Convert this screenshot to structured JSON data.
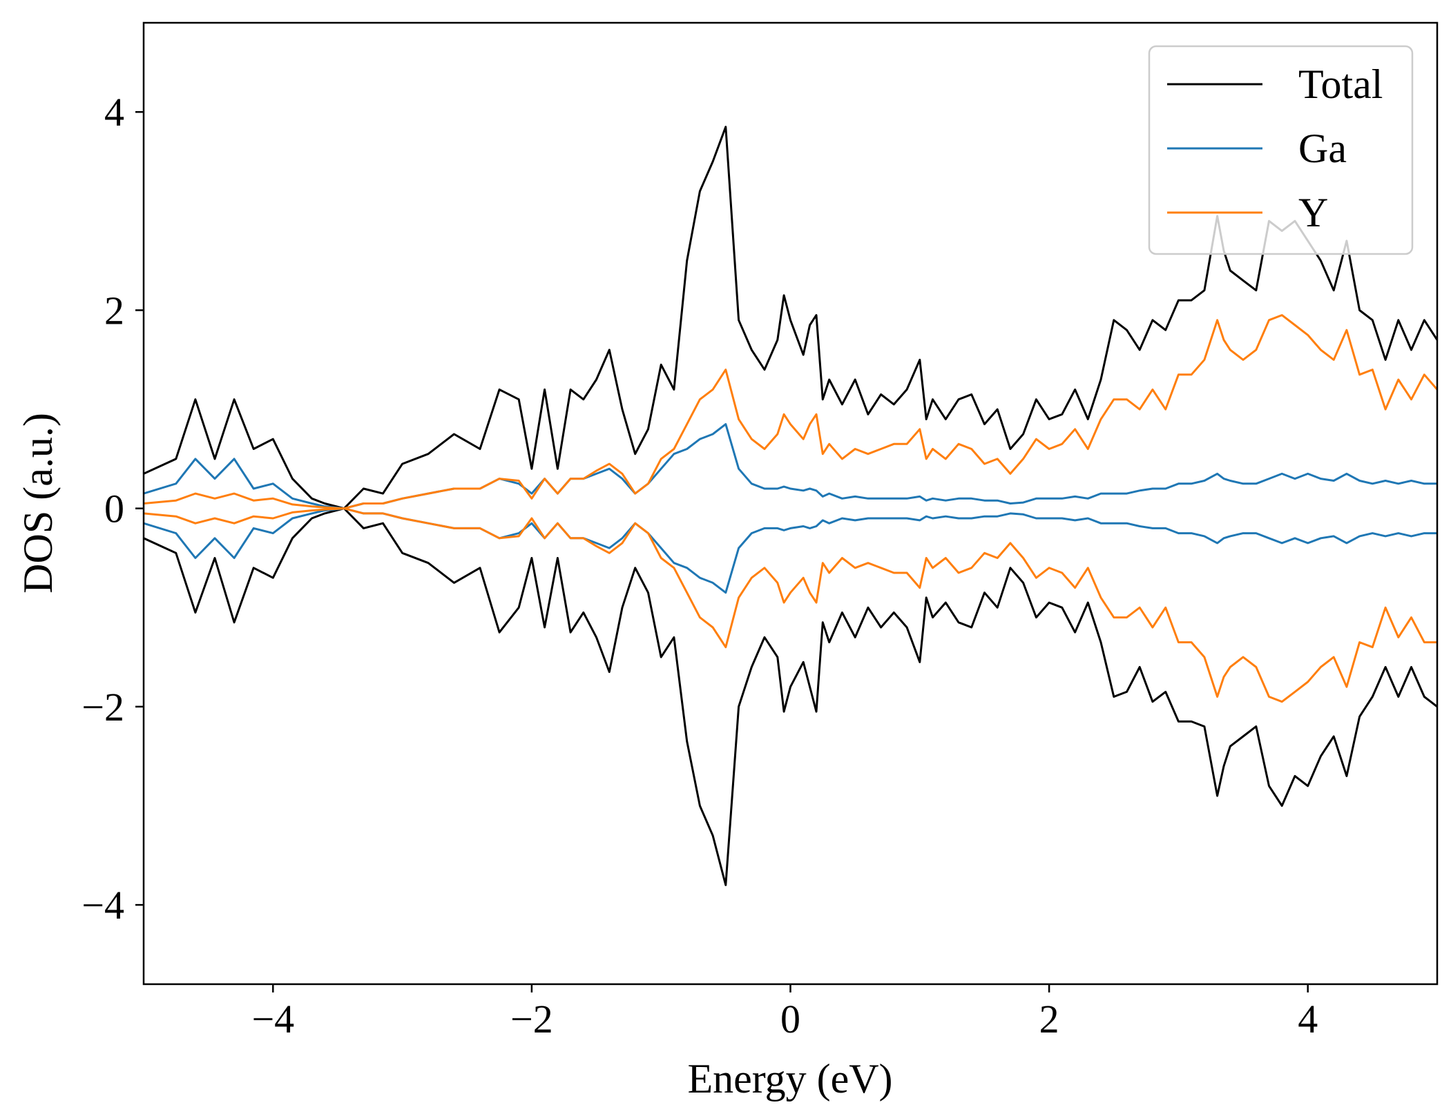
{
  "chart_data": {
    "type": "line",
    "title": "",
    "xlabel": "Energy (eV)",
    "ylabel": "DOS (a.u.)",
    "xlim": [
      -5,
      5
    ],
    "ylim": [
      -4.8,
      4.9
    ],
    "xticks": [
      -4,
      -2,
      0,
      2,
      4
    ],
    "xtick_labels": [
      "−4",
      "−2",
      "0",
      "2",
      "4"
    ],
    "yticks": [
      4,
      2,
      0,
      -2,
      -4
    ],
    "ytick_labels": [
      "4",
      "2",
      "0",
      "−2",
      "−4"
    ],
    "grid": false,
    "legend_position": "top-right",
    "x": [
      -5.0,
      -4.75,
      -4.6,
      -4.45,
      -4.3,
      -4.15,
      -4.0,
      -3.85,
      -3.7,
      -3.6,
      -3.45,
      -3.3,
      -3.15,
      -3.0,
      -2.8,
      -2.6,
      -2.4,
      -2.25,
      -2.1,
      -2.0,
      -1.9,
      -1.8,
      -1.7,
      -1.6,
      -1.5,
      -1.4,
      -1.3,
      -1.2,
      -1.1,
      -1.0,
      -0.9,
      -0.8,
      -0.7,
      -0.6,
      -0.5,
      -0.4,
      -0.3,
      -0.2,
      -0.1,
      -0.05,
      0.0,
      0.1,
      0.15,
      0.2,
      0.25,
      0.3,
      0.4,
      0.5,
      0.6,
      0.7,
      0.8,
      0.9,
      1.0,
      1.05,
      1.1,
      1.2,
      1.3,
      1.4,
      1.5,
      1.6,
      1.7,
      1.8,
      1.9,
      2.0,
      2.1,
      2.2,
      2.3,
      2.4,
      2.5,
      2.6,
      2.7,
      2.8,
      2.9,
      3.0,
      3.1,
      3.2,
      3.3,
      3.35,
      3.4,
      3.5,
      3.6,
      3.7,
      3.8,
      3.9,
      4.0,
      4.1,
      4.2,
      4.3,
      4.4,
      4.5,
      4.6,
      4.7,
      4.8,
      4.9,
      5.0
    ],
    "series": [
      {
        "name": "Total",
        "color": "#000000",
        "values": [
          0.35,
          0.5,
          1.1,
          0.5,
          1.1,
          0.6,
          0.7,
          0.3,
          0.1,
          0.05,
          0.0,
          0.2,
          0.15,
          0.45,
          0.55,
          0.75,
          0.6,
          1.2,
          1.1,
          0.4,
          1.2,
          0.4,
          1.2,
          1.1,
          1.3,
          1.6,
          1.0,
          0.55,
          0.8,
          1.45,
          1.2,
          2.5,
          3.2,
          3.5,
          3.85,
          1.9,
          1.6,
          1.4,
          1.7,
          2.15,
          1.9,
          1.55,
          1.85,
          1.95,
          1.1,
          1.3,
          1.05,
          1.3,
          0.95,
          1.15,
          1.05,
          1.2,
          1.5,
          0.9,
          1.1,
          0.9,
          1.1,
          1.15,
          0.85,
          1.0,
          0.6,
          0.75,
          1.1,
          0.9,
          0.95,
          1.2,
          0.9,
          1.3,
          1.9,
          1.8,
          1.6,
          1.9,
          1.8,
          2.1,
          2.1,
          2.2,
          2.95,
          2.6,
          2.4,
          2.3,
          2.2,
          2.9,
          2.8,
          2.9,
          2.7,
          2.5,
          2.2,
          2.7,
          2.0,
          1.9,
          1.5,
          1.9,
          1.6,
          1.9,
          1.7
        ]
      },
      {
        "name": "Ga",
        "color": "#1f77b4",
        "values": [
          0.15,
          0.25,
          0.5,
          0.3,
          0.5,
          0.2,
          0.25,
          0.1,
          0.05,
          0.02,
          0.0,
          0.05,
          0.05,
          0.1,
          0.15,
          0.2,
          0.2,
          0.3,
          0.25,
          0.15,
          0.3,
          0.15,
          0.3,
          0.3,
          0.35,
          0.4,
          0.3,
          0.15,
          0.25,
          0.4,
          0.55,
          0.6,
          0.7,
          0.75,
          0.85,
          0.4,
          0.25,
          0.2,
          0.2,
          0.22,
          0.2,
          0.18,
          0.2,
          0.18,
          0.12,
          0.15,
          0.1,
          0.12,
          0.1,
          0.1,
          0.1,
          0.1,
          0.12,
          0.08,
          0.1,
          0.08,
          0.1,
          0.1,
          0.08,
          0.08,
          0.05,
          0.06,
          0.1,
          0.1,
          0.1,
          0.12,
          0.1,
          0.15,
          0.15,
          0.15,
          0.18,
          0.2,
          0.2,
          0.25,
          0.25,
          0.28,
          0.35,
          0.3,
          0.28,
          0.25,
          0.25,
          0.3,
          0.35,
          0.3,
          0.35,
          0.3,
          0.28,
          0.35,
          0.28,
          0.25,
          0.28,
          0.25,
          0.28,
          0.25,
          0.25
        ]
      },
      {
        "name": "Y",
        "color": "#ff7f0e",
        "values": [
          0.05,
          0.08,
          0.15,
          0.1,
          0.15,
          0.08,
          0.1,
          0.04,
          0.02,
          0.01,
          0.0,
          0.05,
          0.05,
          0.1,
          0.15,
          0.2,
          0.2,
          0.3,
          0.28,
          0.1,
          0.3,
          0.15,
          0.3,
          0.3,
          0.38,
          0.45,
          0.35,
          0.15,
          0.25,
          0.5,
          0.6,
          0.85,
          1.1,
          1.2,
          1.4,
          0.9,
          0.7,
          0.6,
          0.75,
          0.95,
          0.85,
          0.7,
          0.85,
          0.95,
          0.55,
          0.65,
          0.5,
          0.6,
          0.55,
          0.6,
          0.65,
          0.65,
          0.8,
          0.5,
          0.6,
          0.5,
          0.65,
          0.6,
          0.45,
          0.5,
          0.35,
          0.5,
          0.7,
          0.6,
          0.65,
          0.8,
          0.6,
          0.9,
          1.1,
          1.1,
          1.0,
          1.2,
          1.0,
          1.35,
          1.35,
          1.5,
          1.9,
          1.7,
          1.6,
          1.5,
          1.6,
          1.9,
          1.95,
          1.85,
          1.75,
          1.6,
          1.5,
          1.8,
          1.35,
          1.4,
          1.0,
          1.3,
          1.1,
          1.35,
          1.2
        ]
      }
    ],
    "mirrored_negative": true,
    "negative_branch_note_values": {
      "Total": [
        -0.3,
        -0.45,
        -1.05,
        -0.5,
        -1.15,
        -0.6,
        -0.7,
        -0.3,
        -0.1,
        -0.05,
        0.0,
        -0.2,
        -0.15,
        -0.45,
        -0.55,
        -0.75,
        -0.6,
        -1.25,
        -1.0,
        -0.5,
        -1.2,
        -0.5,
        -1.25,
        -1.05,
        -1.3,
        -1.65,
        -1.0,
        -0.6,
        -0.85,
        -1.5,
        -1.3,
        -2.35,
        -3.0,
        -3.3,
        -3.8,
        -2.0,
        -1.6,
        -1.3,
        -1.5,
        -2.05,
        -1.8,
        -1.55,
        -1.8,
        -2.05,
        -1.15,
        -1.35,
        -1.05,
        -1.3,
        -1.0,
        -1.2,
        -1.05,
        -1.2,
        -1.55,
        -0.9,
        -1.1,
        -0.95,
        -1.15,
        -1.2,
        -0.85,
        -1.0,
        -0.6,
        -0.75,
        -1.1,
        -0.95,
        -1.0,
        -1.25,
        -0.95,
        -1.35,
        -1.9,
        -1.85,
        -1.6,
        -1.95,
        -1.85,
        -2.15,
        -2.15,
        -2.2,
        -2.9,
        -2.6,
        -2.4,
        -2.3,
        -2.2,
        -2.8,
        -3.0,
        -2.7,
        -2.8,
        -2.5,
        -2.3,
        -2.7,
        -2.1,
        -1.9,
        -1.6,
        -1.9,
        -1.6,
        -1.9,
        -2.0
      ],
      "Ga": [
        -0.15,
        -0.25,
        -0.5,
        -0.3,
        -0.5,
        -0.2,
        -0.25,
        -0.1,
        -0.05,
        -0.02,
        0.0,
        -0.05,
        -0.05,
        -0.1,
        -0.15,
        -0.2,
        -0.2,
        -0.3,
        -0.25,
        -0.15,
        -0.3,
        -0.15,
        -0.3,
        -0.3,
        -0.35,
        -0.4,
        -0.3,
        -0.15,
        -0.25,
        -0.4,
        -0.55,
        -0.6,
        -0.7,
        -0.75,
        -0.85,
        -0.4,
        -0.25,
        -0.2,
        -0.2,
        -0.22,
        -0.2,
        -0.18,
        -0.2,
        -0.18,
        -0.12,
        -0.15,
        -0.1,
        -0.12,
        -0.1,
        -0.1,
        -0.1,
        -0.1,
        -0.12,
        -0.08,
        -0.1,
        -0.08,
        -0.1,
        -0.1,
        -0.08,
        -0.08,
        -0.05,
        -0.06,
        -0.1,
        -0.1,
        -0.1,
        -0.12,
        -0.1,
        -0.15,
        -0.15,
        -0.15,
        -0.18,
        -0.2,
        -0.2,
        -0.25,
        -0.25,
        -0.28,
        -0.35,
        -0.3,
        -0.28,
        -0.25,
        -0.25,
        -0.3,
        -0.35,
        -0.3,
        -0.35,
        -0.3,
        -0.28,
        -0.35,
        -0.28,
        -0.25,
        -0.28,
        -0.25,
        -0.28,
        -0.25,
        -0.25
      ],
      "Y": [
        -0.05,
        -0.08,
        -0.15,
        -0.1,
        -0.15,
        -0.08,
        -0.1,
        -0.04,
        -0.02,
        -0.01,
        0.0,
        -0.05,
        -0.05,
        -0.1,
        -0.15,
        -0.2,
        -0.2,
        -0.3,
        -0.28,
        -0.1,
        -0.3,
        -0.15,
        -0.3,
        -0.3,
        -0.38,
        -0.45,
        -0.35,
        -0.15,
        -0.25,
        -0.5,
        -0.6,
        -0.85,
        -1.1,
        -1.2,
        -1.4,
        -0.9,
        -0.7,
        -0.6,
        -0.75,
        -0.95,
        -0.85,
        -0.7,
        -0.85,
        -0.95,
        -0.55,
        -0.65,
        -0.5,
        -0.6,
        -0.55,
        -0.6,
        -0.65,
        -0.65,
        -0.8,
        -0.5,
        -0.6,
        -0.5,
        -0.65,
        -0.6,
        -0.45,
        -0.5,
        -0.35,
        -0.5,
        -0.7,
        -0.6,
        -0.65,
        -0.8,
        -0.6,
        -0.9,
        -1.1,
        -1.1,
        -1.0,
        -1.2,
        -1.0,
        -1.35,
        -1.35,
        -1.5,
        -1.9,
        -1.7,
        -1.6,
        -1.5,
        -1.6,
        -1.9,
        -1.95,
        -1.85,
        -1.75,
        -1.6,
        -1.5,
        -1.8,
        -1.35,
        -1.4,
        -1.0,
        -1.3,
        -1.1,
        -1.35,
        -1.35
      ]
    }
  }
}
